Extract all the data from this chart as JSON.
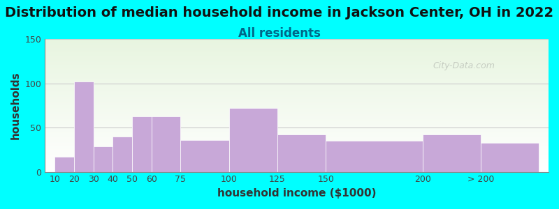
{
  "title": "Distribution of median household income in Jackson Center, OH in 2022",
  "subtitle": "All residents",
  "xlabel": "household income ($1000)",
  "ylabel": "households",
  "bar_labels": [
    "10",
    "20",
    "30",
    "40",
    "50",
    "60",
    "75",
    "100",
    "125",
    "150",
    "200",
    "> 200"
  ],
  "bar_values": [
    17,
    102,
    29,
    40,
    63,
    63,
    36,
    72,
    42,
    35,
    42,
    33
  ],
  "bar_color": "#c8a8d8",
  "background_color": "#00ffff",
  "plot_bg_top": "#e8f5e0",
  "plot_bg_bottom": "#ffffff",
  "ylim": [
    0,
    150
  ],
  "yticks": [
    0,
    50,
    100,
    150
  ],
  "bar_lefts": [
    10,
    20,
    30,
    40,
    50,
    60,
    75,
    100,
    125,
    150,
    200,
    230
  ],
  "bar_rights": [
    20,
    30,
    40,
    50,
    60,
    75,
    100,
    125,
    150,
    200,
    230,
    260
  ],
  "tick_positions": [
    10,
    20,
    30,
    40,
    50,
    60,
    75,
    100,
    125,
    150,
    200,
    230
  ],
  "xlim": [
    5,
    265
  ],
  "title_fontsize": 14,
  "subtitle_fontsize": 12,
  "axis_label_fontsize": 11,
  "watermark_text": "City-Data.com"
}
